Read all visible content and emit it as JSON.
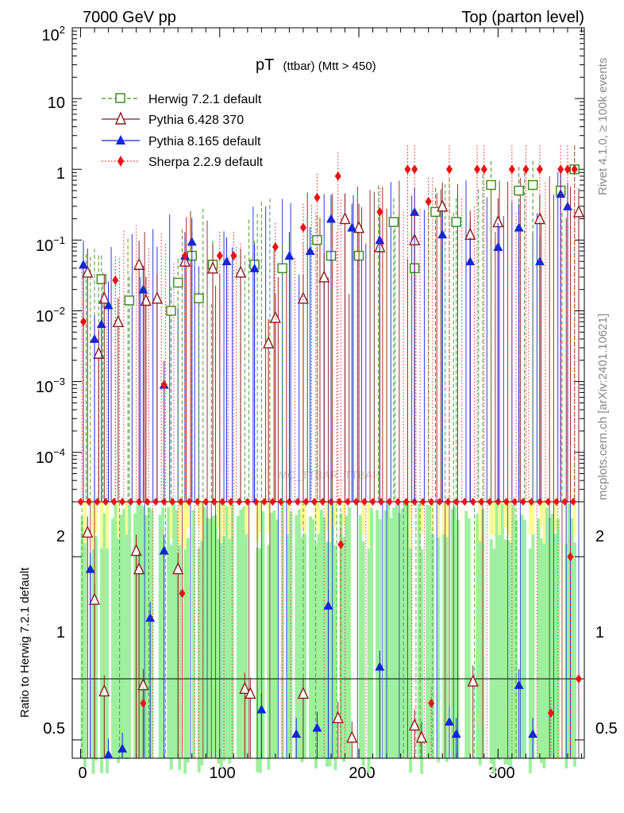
{
  "header": {
    "left": "7000 GeV pp",
    "right": "Top (parton level)"
  },
  "side_labels": {
    "rivet": "Rivet 4.1.0, ≥ 100k events",
    "mcplots": "mcplots.cern.ch [arXiv:2401.10621]"
  },
  "chart_data": [
    {
      "panel": "main",
      "type": "scatter",
      "title_main": "pT",
      "title_sub": "(ttbar) (Mtt > 450)",
      "watermark": "MC_TTBAR_TTBAR",
      "yscale": "log",
      "ylim": [
        2e-05,
        100
      ],
      "xlim": [
        -6,
        362
      ],
      "y_tick_labels": [
        "10^2",
        "10",
        "1",
        "10^-1",
        "10^-2",
        "10^-3",
        "10^-4"
      ],
      "legend_position": "top-left",
      "series": [
        {
          "name": "Herwig 7.2.1 default",
          "color": "#3f8f1f",
          "marker": "open-square",
          "linestyle": "dashed",
          "x": [
            15,
            35,
            65,
            70,
            80,
            85,
            95,
            125,
            145,
            170,
            180,
            200,
            225,
            240,
            255,
            270,
            295,
            315,
            325,
            345,
            355
          ],
          "y": [
            0.028,
            0.014,
            0.01,
            0.025,
            0.06,
            0.015,
            0.045,
            0.045,
            0.04,
            0.1,
            0.06,
            0.06,
            0.18,
            0.04,
            0.25,
            0.18,
            0.6,
            0.5,
            0.6,
            0.5,
            1.0
          ]
        },
        {
          "name": "Pythia 6.428 370",
          "color": "#8b1a1a",
          "marker": "open-triangle",
          "linestyle": "solid",
          "x": [
            5,
            13,
            17,
            27,
            42,
            47,
            55,
            75,
            95,
            115,
            135,
            140,
            160,
            175,
            190,
            200,
            215,
            240,
            260,
            280,
            300,
            330,
            358
          ],
          "y": [
            0.035,
            0.0025,
            0.015,
            0.007,
            0.045,
            0.014,
            0.015,
            0.05,
            0.04,
            0.035,
            0.0035,
            0.008,
            0.015,
            0.03,
            0.2,
            0.15,
            0.08,
            0.1,
            0.3,
            0.12,
            0.18,
            0.2,
            0.25
          ]
        },
        {
          "name": "Pythia 8.165 default",
          "color": "#1426d6",
          "marker": "filled-triangle",
          "linestyle": "solid",
          "x": [
            2,
            10,
            15,
            20,
            45,
            60,
            75,
            80,
            105,
            125,
            150,
            165,
            180,
            195,
            215,
            240,
            260,
            280,
            300,
            315,
            330,
            345,
            350
          ],
          "y": [
            0.045,
            0.004,
            0.0065,
            0.012,
            0.02,
            0.0009,
            0.06,
            0.095,
            0.05,
            0.04,
            0.06,
            0.07,
            0.2,
            0.15,
            0.1,
            0.25,
            0.12,
            0.05,
            0.08,
            0.15,
            0.05,
            0.45,
            0.3
          ]
        },
        {
          "name": "Sherpa 2.2.9 default",
          "color": "#ee1111",
          "marker": "filled-diamond",
          "linestyle": "dotted",
          "x": [
            2,
            25,
            60,
            75,
            100,
            110,
            140,
            160,
            170,
            185,
            215,
            235,
            240,
            250,
            265,
            285,
            290,
            310,
            320,
            330,
            345,
            350,
            355
          ],
          "y": [
            0.007,
            0.027,
            0.0009,
            0.06,
            0.06,
            0.06,
            0.08,
            0.15,
            0.4,
            0.8,
            0.25,
            1.0,
            1.0,
            0.35,
            1.0,
            1.0,
            1.0,
            1.0,
            1.0,
            1.0,
            1.0,
            1.0,
            1.0
          ]
        }
      ]
    },
    {
      "panel": "ratio",
      "type": "scatter",
      "ylabel": "Ratio to Herwig 7.2.1 default",
      "ylim": [
        0.35,
        2.45
      ],
      "y_tick_labels": [
        "0.5",
        "1",
        "2"
      ],
      "x_tick_labels": [
        "0",
        "100",
        "200",
        "300"
      ],
      "xlim": [
        -6,
        362
      ],
      "series": [
        {
          "name": "Pythia 6.428 370",
          "x": [
            5,
            10,
            17,
            40,
            42,
            45,
            70,
            118,
            122,
            160,
            185,
            195,
            240,
            245,
            282
          ],
          "y": [
            2.2,
            1.65,
            0.9,
            2.05,
            1.9,
            0.95,
            1.9,
            0.92,
            0.88,
            0.88,
            0.68,
            0.52,
            0.62,
            0.52,
            0.98
          ]
        },
        {
          "name": "Pythia 8.165 default",
          "x": [
            7,
            20,
            30,
            50,
            60,
            130,
            155,
            170,
            178,
            215,
            265,
            270,
            315,
            325
          ],
          "y": [
            1.9,
            0.38,
            0.43,
            1.5,
            2.05,
            0.75,
            0.55,
            0.6,
            1.6,
            1.1,
            0.65,
            0.55,
            0.95,
            0.55
          ]
        },
        {
          "name": "Sherpa 2.2.9 default",
          "x": [
            45,
            73,
            187,
            252,
            338,
            352,
            358
          ],
          "y": [
            0.8,
            1.7,
            2.1,
            0.8,
            0.72,
            2.0,
            1.0
          ]
        }
      ]
    }
  ]
}
